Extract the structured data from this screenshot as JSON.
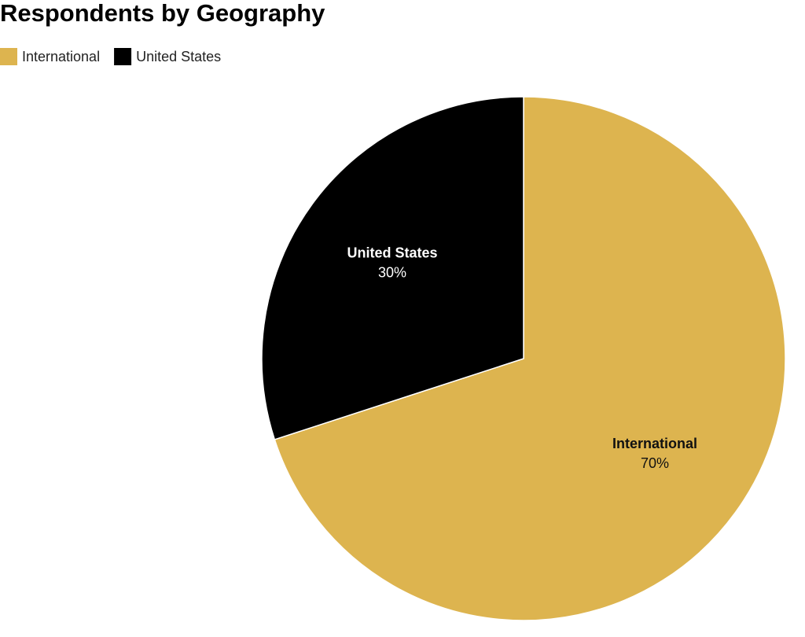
{
  "chart_data": {
    "type": "pie",
    "title": "Respondents by Geography",
    "categories": [
      "International",
      "United States"
    ],
    "values": [
      70,
      30
    ],
    "value_labels": [
      "70%",
      "30%"
    ],
    "colors": [
      "#ddb44f",
      "#000000"
    ]
  }
}
